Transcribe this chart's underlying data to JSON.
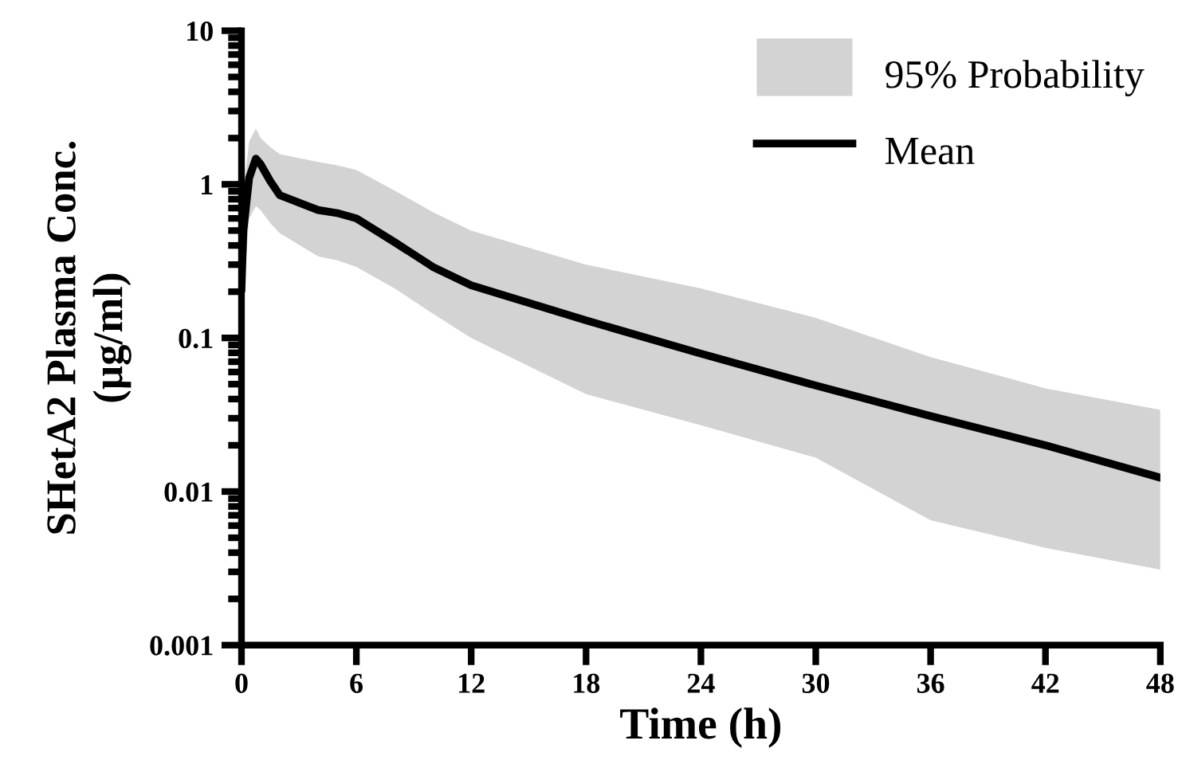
{
  "chart_data": {
    "type": "line",
    "xlabel": "Time (h)",
    "ylabel": "SHetA2 Plasma Conc.\n(µg/ml)",
    "annotations": [
      "95% Probability"
    ],
    "x": [
      0,
      0.1,
      0.4,
      0.75,
      1,
      1.5,
      2,
      4,
      5,
      6,
      8,
      10,
      12,
      18,
      24,
      30,
      36,
      42,
      48
    ],
    "series": [
      {
        "name": "Mean",
        "color": "#000000",
        "values": [
          0.21,
          0.5,
          1.1,
          1.47,
          1.35,
          1.05,
          0.85,
          0.68,
          0.65,
          0.6,
          0.42,
          0.29,
          0.22,
          0.13,
          0.079,
          0.049,
          0.031,
          0.02,
          0.0123
        ],
        "lower": [
          0.1,
          0.2,
          0.6,
          0.72,
          0.68,
          0.56,
          0.48,
          0.34,
          0.32,
          0.29,
          0.21,
          0.144,
          0.1,
          0.043,
          0.027,
          0.0166,
          0.0065,
          0.0043,
          0.0031
        ],
        "upper": [
          0.25,
          0.9,
          1.9,
          2.3,
          2.0,
          1.75,
          1.57,
          1.4,
          1.33,
          1.24,
          0.91,
          0.66,
          0.5,
          0.3,
          0.21,
          0.135,
          0.075,
          0.047,
          0.034
        ]
      }
    ],
    "log": "y",
    "xlim": [
      0,
      48
    ],
    "xticks": [
      0,
      6,
      12,
      18,
      24,
      30,
      36,
      42,
      48
    ],
    "ylim": [
      0.001,
      10
    ],
    "yticks": [
      0.001,
      0.01,
      0.1,
      1,
      10
    ],
    "grid": false,
    "legend": "top right",
    "line_style": "solid",
    "marker": "none"
  }
}
